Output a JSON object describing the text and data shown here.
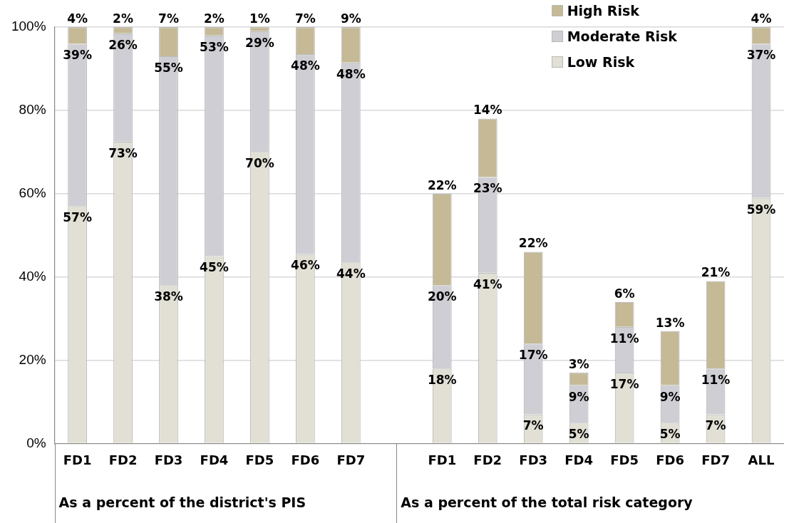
{
  "chart_data": {
    "type": "bar",
    "stacked": true,
    "categories": [
      "FD1",
      "FD2",
      "FD3",
      "FD4",
      "FD5",
      "FD6",
      "FD7",
      null,
      "FD1",
      "FD2",
      "FD3",
      "FD4",
      "FD5",
      "FD6",
      "FD7",
      "ALL"
    ],
    "series": [
      {
        "name": "Low Risk",
        "color": "#e2e0d4",
        "values": [
          57,
          72.5,
          38,
          45,
          70,
          45.5,
          43.5,
          null,
          18,
          41,
          7,
          5,
          17,
          5,
          7,
          59
        ],
        "value_labels": [
          "57%",
          "73%",
          "38%",
          "45%",
          "70%",
          "46%",
          "44%",
          null,
          "18%",
          "41%",
          "7%",
          "5%",
          "17%",
          "5%",
          "7%",
          "59%"
        ]
      },
      {
        "name": "Moderate Risk",
        "color": "#cfced4",
        "values": [
          39,
          26,
          55,
          53,
          29,
          48,
          48,
          null,
          20,
          23,
          17,
          9,
          11,
          9,
          11,
          37
        ],
        "value_labels": [
          "39%",
          "26%",
          "55%",
          "53%",
          "29%",
          "48%",
          "48%",
          null,
          "20%",
          "23%",
          "17%",
          "9%",
          "11%",
          "9%",
          "11%",
          "37%"
        ]
      },
      {
        "name": "High Risk",
        "color": "#c5b996",
        "values": [
          4,
          1.5,
          7,
          2,
          1,
          6.5,
          8.5,
          null,
          22,
          14,
          22,
          3,
          6,
          13,
          21,
          4
        ],
        "value_labels": [
          "4%",
          "2%",
          "7%",
          "2%",
          "1%",
          "7%",
          "9%",
          null,
          "22%",
          "14%",
          "22%",
          "3%",
          "6%",
          "13%",
          "21%",
          "4%"
        ]
      }
    ],
    "ylim": [
      0,
      100
    ],
    "yticks": [
      {
        "value": 0,
        "label": "0%"
      },
      {
        "value": 20,
        "label": "20%"
      },
      {
        "value": 40,
        "label": "40%"
      },
      {
        "value": 60,
        "label": "60%"
      },
      {
        "value": 80,
        "label": "80%"
      },
      {
        "value": 100,
        "label": "100%"
      }
    ],
    "grid": "y",
    "legend": "top right",
    "annotations": [
      "As a percent of the district's PIS",
      "As a percent of the total risk category"
    ]
  }
}
